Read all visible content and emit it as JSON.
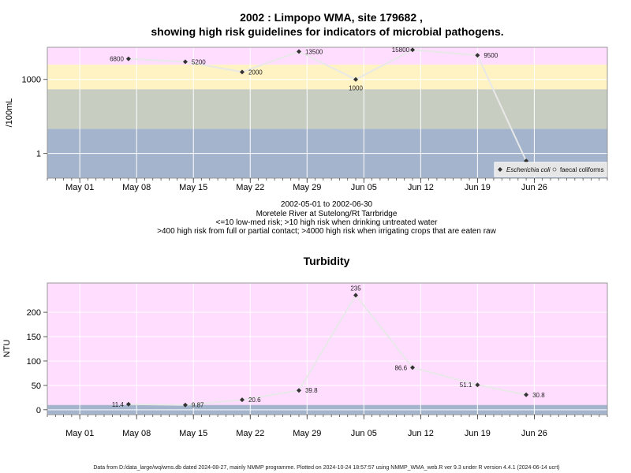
{
  "title_line1": "2002 : Limpopo WMA, site 179682 ,",
  "title_line2": "showing high risk guidelines for indicators of microbial pathogens.",
  "subtitle": {
    "date_range": "2002-05-01 to 2002-06-30",
    "river": "Moretele River at Sutelong/Rt Tarrbridge",
    "guide1": "<=10 low-med risk; >10 high risk when drinking untreated water",
    "guide2": ">400 high risk from full or partial contact; >4000 high risk when irrigating crops that are eaten raw"
  },
  "footer": "Data from D:/data_large/wq/wms.db dated 2024-08-27, mainly NMMP programme. Plotted on 2024-10-24 18:57:57 using NMMP_WMA_web.R ver 9.3 under R version 4.4.1 (2024-06-14 ucrt)",
  "colors": {
    "pink": "#ffddff",
    "yellow": "#fff3c4",
    "green": "#c8cdc2",
    "blue": "#a3b4cc",
    "line": "#e8e8e8",
    "marker": "#333333"
  },
  "chart_data": [
    {
      "type": "line",
      "title": "",
      "ylabel": "/100mL",
      "yscale": "log10",
      "ylim": [
        0.1,
        20000
      ],
      "x_ticks": [
        {
          "date": "2002-05-01",
          "label": "May 01"
        },
        {
          "date": "2002-05-08",
          "label": "May 08"
        },
        {
          "date": "2002-05-15",
          "label": "May 15"
        },
        {
          "date": "2002-05-22",
          "label": "May 22"
        },
        {
          "date": "2002-05-29",
          "label": "May 29"
        },
        {
          "date": "2002-06-05",
          "label": "Jun 05"
        },
        {
          "date": "2002-06-12",
          "label": "Jun 12"
        },
        {
          "date": "2002-06-19",
          "label": "Jun 19"
        },
        {
          "date": "2002-06-26",
          "label": "Jun 26"
        }
      ],
      "y_ticks": [
        {
          "value": 1,
          "label": "1"
        },
        {
          "value": 1000,
          "label": "1000"
        }
      ],
      "bands": [
        {
          "from": 0.1,
          "to": 10,
          "color": "blue"
        },
        {
          "from": 10,
          "to": 400,
          "color": "green"
        },
        {
          "from": 400,
          "to": 4000,
          "color": "yellow"
        },
        {
          "from": 4000,
          "to": 20000,
          "color": "pink"
        }
      ],
      "legend": {
        "position": "bottom-right",
        "entries": [
          "Escherichia coli",
          "faecal coliforms"
        ]
      },
      "series": [
        {
          "name": "Escherichia coli",
          "x": [
            "2002-05-07",
            "2002-05-14",
            "2002-05-21",
            "2002-05-28",
            "2002-06-04",
            "2002-06-11",
            "2002-06-19",
            "2002-06-25"
          ],
          "y": [
            6800,
            5200,
            2000,
            13500,
            1000,
            15800,
            9500,
            0.5
          ],
          "labels": [
            "6800",
            "5200",
            "2000",
            "13500",
            "1000",
            "15800",
            "9500",
            ""
          ]
        }
      ]
    },
    {
      "type": "line",
      "title": "Turbidity",
      "ylabel": "NTU",
      "ylim": [
        -10,
        260
      ],
      "x_ticks": [
        {
          "date": "2002-05-01",
          "label": "May 01"
        },
        {
          "date": "2002-05-08",
          "label": "May 08"
        },
        {
          "date": "2002-05-15",
          "label": "May 15"
        },
        {
          "date": "2002-05-22",
          "label": "May 22"
        },
        {
          "date": "2002-05-29",
          "label": "May 29"
        },
        {
          "date": "2002-06-05",
          "label": "Jun 05"
        },
        {
          "date": "2002-06-12",
          "label": "Jun 12"
        },
        {
          "date": "2002-06-19",
          "label": "Jun 19"
        },
        {
          "date": "2002-06-26",
          "label": "Jun 26"
        }
      ],
      "y_ticks": [
        {
          "value": 0,
          "label": "0"
        },
        {
          "value": 50,
          "label": "50"
        },
        {
          "value": 100,
          "label": "100"
        },
        {
          "value": 150,
          "label": "150"
        },
        {
          "value": 200,
          "label": "200"
        }
      ],
      "bands": [
        {
          "from": -10,
          "to": 10,
          "color": "blue"
        },
        {
          "from": 10,
          "to": 260,
          "color": "pink"
        }
      ],
      "series": [
        {
          "name": "",
          "x": [
            "2002-05-07",
            "2002-05-14",
            "2002-05-21",
            "2002-05-28",
            "2002-06-04",
            "2002-06-11",
            "2002-06-19",
            "2002-06-25"
          ],
          "y": [
            11.4,
            9.87,
            20.6,
            39.8,
            235,
            86.6,
            51.1,
            30.8
          ],
          "labels": [
            "11.4",
            "9.87",
            "20.6",
            "39.8",
            "235",
            "86.6",
            "51.1",
            "30.8"
          ]
        }
      ]
    }
  ]
}
